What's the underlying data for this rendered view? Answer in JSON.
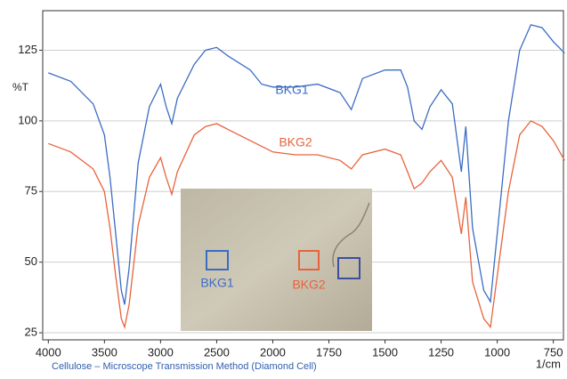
{
  "chart_data": {
    "type": "line",
    "x_label": "1/cm",
    "y_label": "%T",
    "caption": "Cellulose – Microscope Transmission Method (Diamond Cell)",
    "x": [
      4000,
      3800,
      3600,
      3500,
      3450,
      3400,
      3350,
      3320,
      3280,
      3200,
      3100,
      3000,
      2950,
      2900,
      2850,
      2700,
      2600,
      2500,
      2400,
      2200,
      2100,
      2000,
      1900,
      1800,
      1700,
      1650,
      1600,
      1500,
      1430,
      1400,
      1370,
      1335,
      1300,
      1250,
      1200,
      1160,
      1140,
      1110,
      1060,
      1030,
      1000,
      950,
      900,
      850,
      800,
      750,
      700
    ],
    "series": [
      {
        "name": "BKG1",
        "color": "#3b6cc4",
        "values": [
          117,
          114,
          106,
          95,
          80,
          60,
          40,
          35,
          48,
          85,
          105,
          113,
          105,
          99,
          108,
          120,
          125,
          126,
          123,
          118,
          113,
          112,
          112,
          113,
          110,
          104,
          115,
          118,
          118,
          112,
          100,
          97,
          105,
          111,
          106,
          82,
          98,
          62,
          40,
          36,
          60,
          100,
          125,
          134,
          133,
          128,
          124
        ]
      },
      {
        "name": "BKG2",
        "color": "#e8633c",
        "values": [
          92,
          89,
          83,
          75,
          62,
          45,
          30,
          27,
          35,
          63,
          80,
          87,
          80,
          74,
          82,
          95,
          98,
          99,
          97,
          93,
          91,
          89,
          88,
          88,
          86,
          83,
          88,
          90,
          88,
          82,
          76,
          78,
          82,
          86,
          80,
          60,
          73,
          43,
          30,
          27,
          45,
          75,
          95,
          100,
          98,
          93,
          86
        ]
      }
    ],
    "xlim": [
      4050,
      705
    ],
    "x_compress_above": 2000,
    "x_compress_factor": 2,
    "xticks": [
      4000,
      3500,
      3000,
      2500,
      2000,
      1750,
      1500,
      1250,
      1000,
      750
    ],
    "ylim": [
      22.5,
      139
    ],
    "yticks": [
      25,
      50,
      75,
      100,
      125
    ],
    "grid": true
  }
}
